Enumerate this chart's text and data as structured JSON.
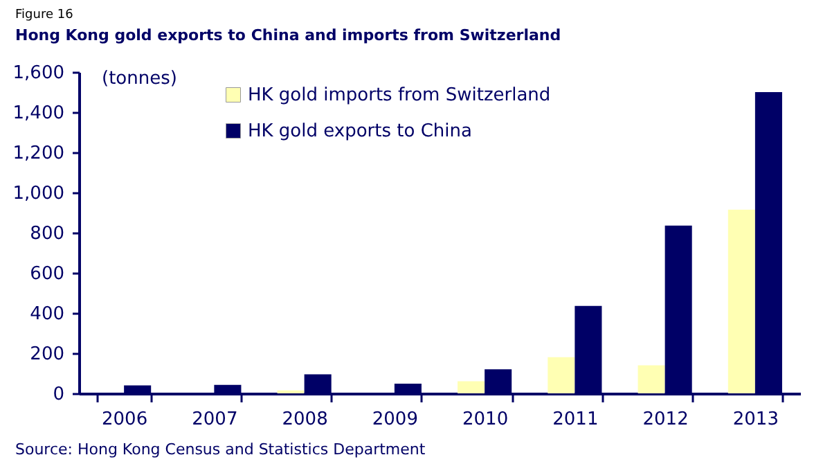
{
  "chart_data": {
    "type": "bar",
    "title": "Hong Kong gold exports to China and imports from Switzerland",
    "ylabel": "(tonnes)",
    "annotations": [
      "Figure 16",
      "Source: Hong Kong Census and Statistics Department"
    ],
    "categories": [
      "2006",
      "2007",
      "2008",
      "2009",
      "2010",
      "2011",
      "2012",
      "2013"
    ],
    "series": [
      {
        "name": "HK gold imports from Switzerland",
        "color": "#ffffb3",
        "values": [
          0,
          0,
          15,
          null,
          60,
          180,
          140,
          915
        ]
      },
      {
        "name": "HK gold exports to China",
        "color": "#000066",
        "values": [
          40,
          42,
          95,
          48,
          120,
          435,
          835,
          1500
        ]
      }
    ],
    "ylim": [
      0,
      1600
    ],
    "yticks": [
      0,
      200,
      400,
      600,
      800,
      {
        "value": 1000,
        "label": "1,000"
      },
      {
        "value": 1200,
        "label": "1,200"
      },
      {
        "value": 1400,
        "label": "1,400"
      },
      {
        "value": 1600,
        "label": "1,600"
      }
    ],
    "grid": false,
    "legend": "top left"
  }
}
